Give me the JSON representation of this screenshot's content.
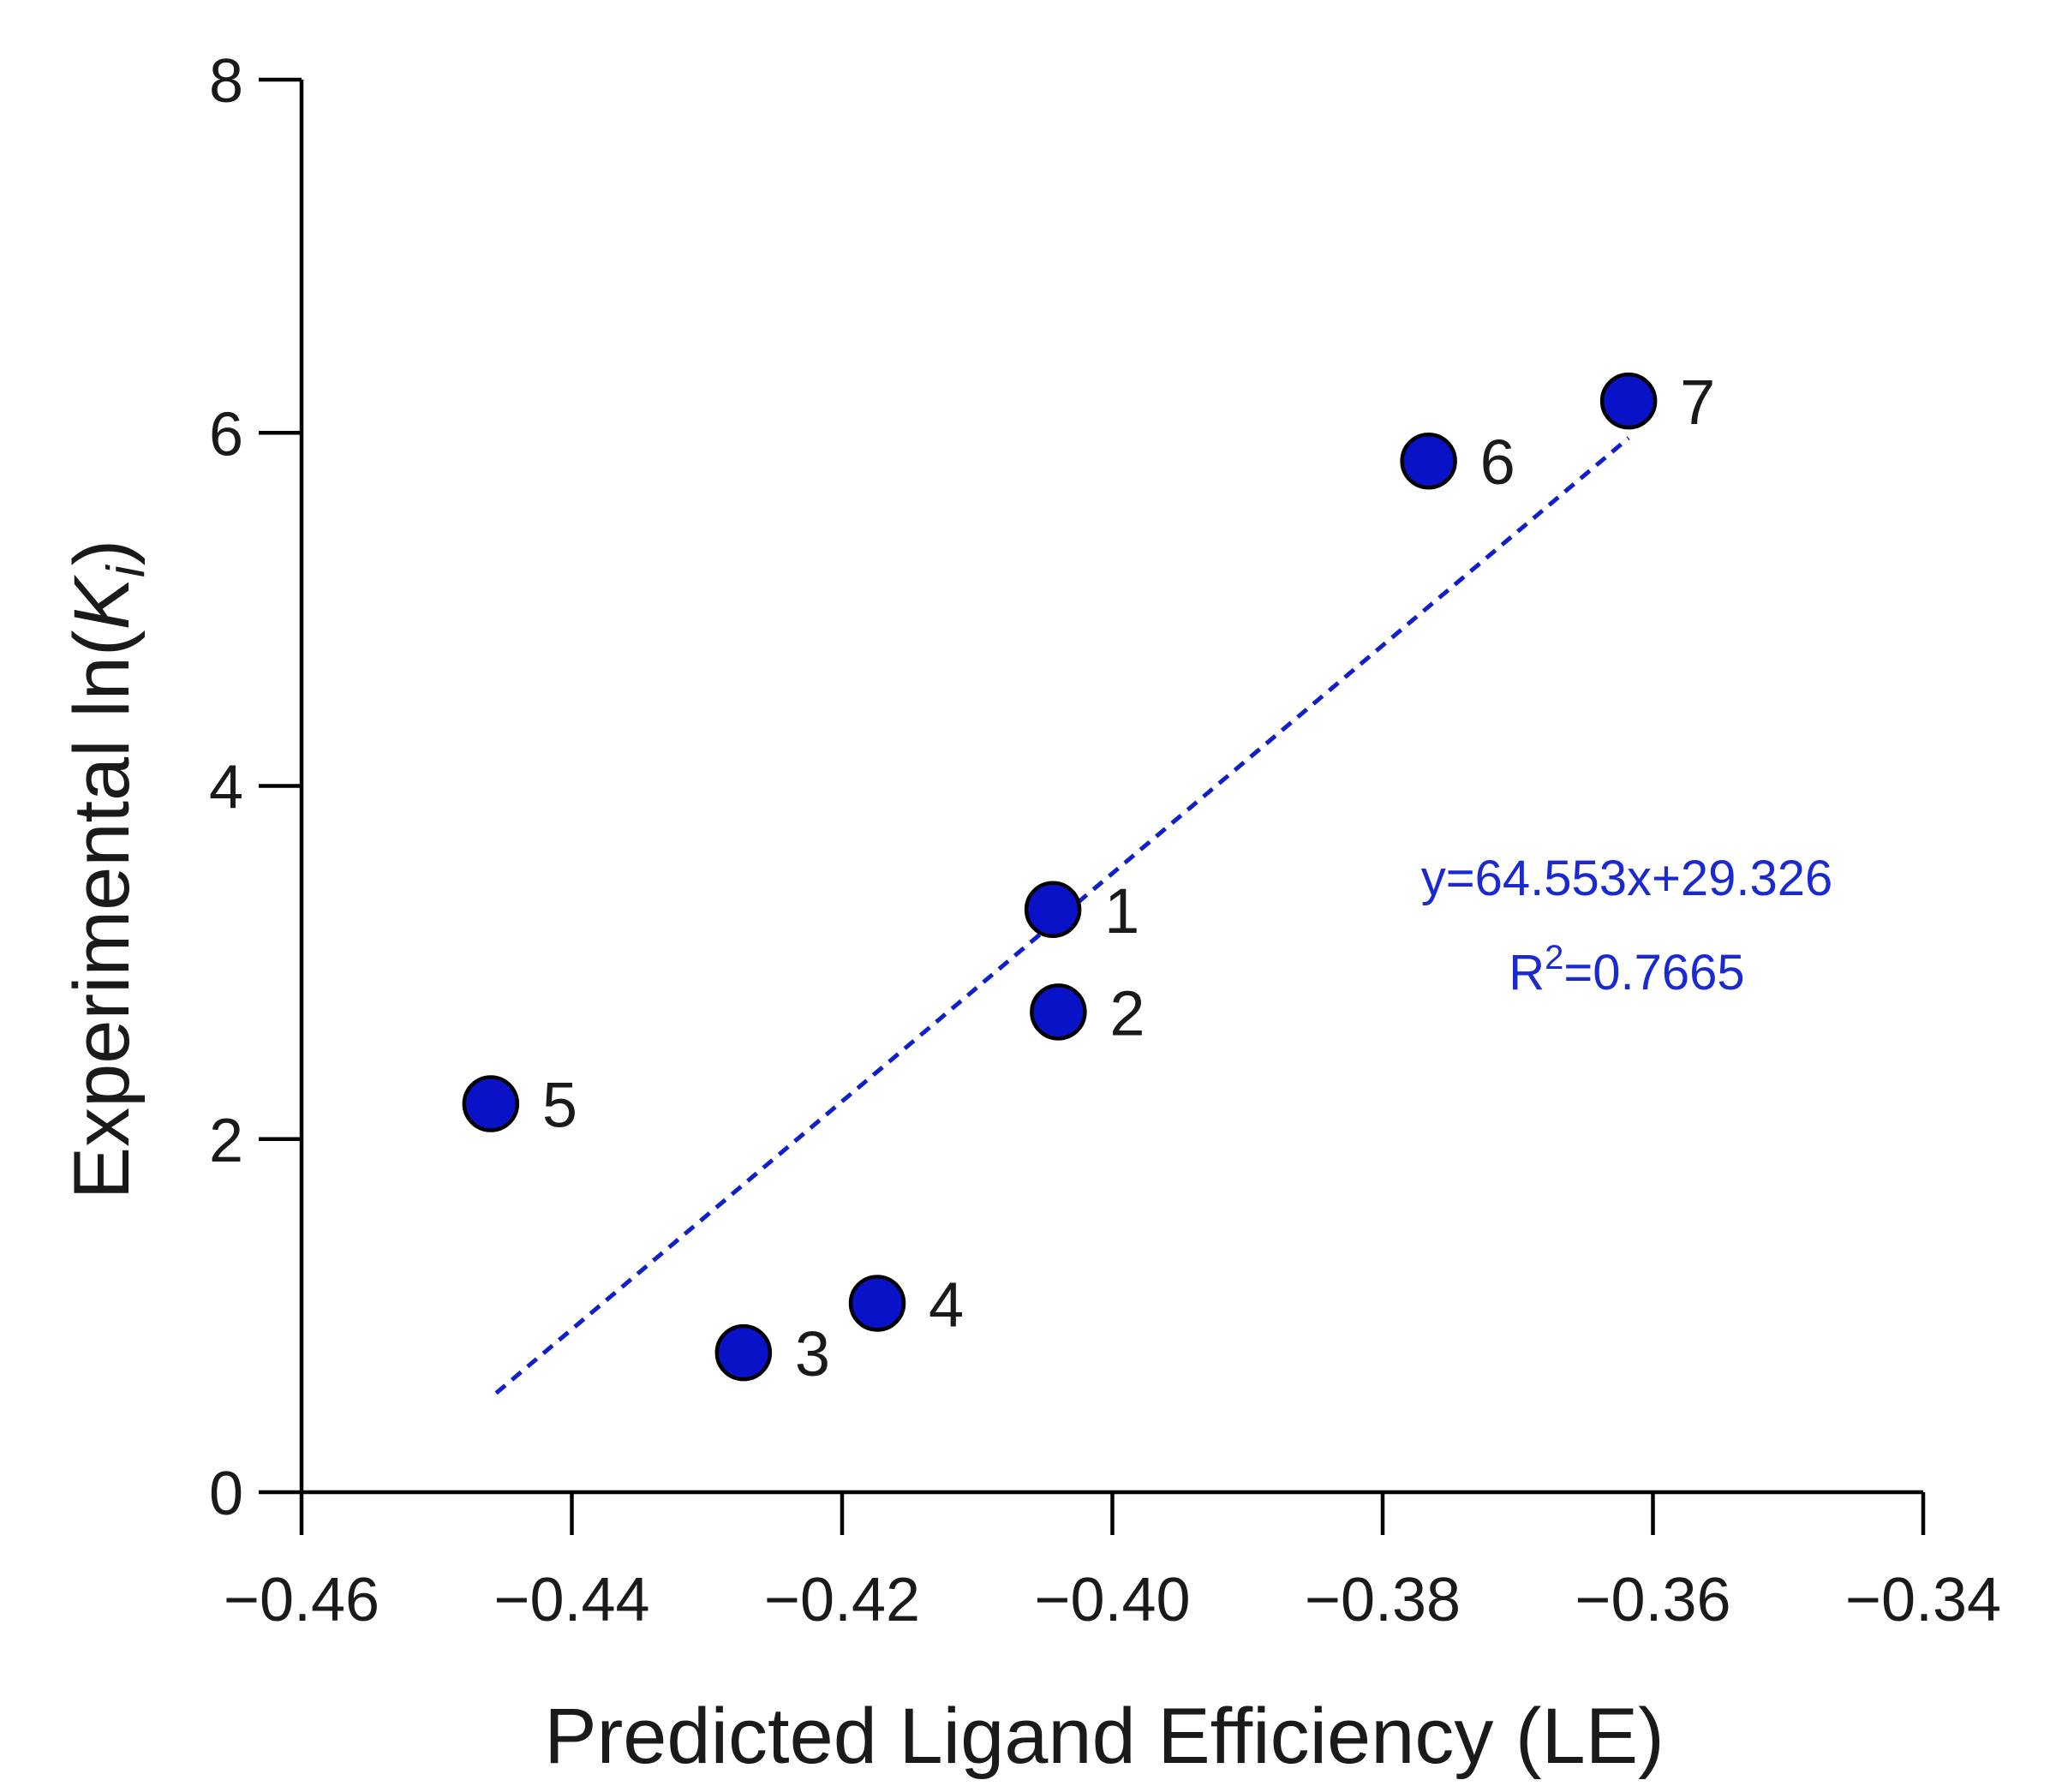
{
  "chart_data": {
    "type": "scatter",
    "xlabel": "Predicted Ligand Efficiency (LE)",
    "ylabel_main": "Experimental ln(",
    "ylabel_var": "K",
    "ylabel_sub": "i",
    "ylabel_end": ")",
    "xlim": [
      -0.46,
      -0.34
    ],
    "ylim": [
      0,
      8
    ],
    "xticks": [
      -0.46,
      -0.44,
      -0.42,
      -0.4,
      -0.38,
      -0.36,
      -0.34
    ],
    "xtick_labels": [
      "−0.46",
      "−0.44",
      "−0.42",
      "−0.40",
      "−0.38",
      "−0.36",
      "−0.34"
    ],
    "yticks": [
      0,
      2,
      4,
      6,
      8
    ],
    "ytick_labels": [
      "0",
      "2",
      "4",
      "6",
      "8"
    ],
    "points": [
      {
        "label": "1",
        "x": -0.4044,
        "y": 3.3
      },
      {
        "label": "2",
        "x": -0.404,
        "y": 2.72
      },
      {
        "label": "3",
        "x": -0.4273,
        "y": 0.79
      },
      {
        "label": "4",
        "x": -0.4174,
        "y": 1.07
      },
      {
        "label": "5",
        "x": -0.446,
        "y": 2.2
      },
      {
        "label": "6",
        "x": -0.3766,
        "y": 5.84
      },
      {
        "label": "7",
        "x": -0.3618,
        "y": 6.18
      }
    ],
    "fit": {
      "slope": 64.553,
      "intercept": 29.326,
      "x_range": [
        -0.4456,
        -0.3618
      ],
      "equation": "y=64.553x+29.326",
      "r2_prefix": "R",
      "r2_sup": "2",
      "r2_value": "=0.7665"
    },
    "colors": {
      "point_fill": "#0a12c8",
      "fit_line": "#1020c8",
      "equation_text": "#1a2ad0"
    }
  }
}
